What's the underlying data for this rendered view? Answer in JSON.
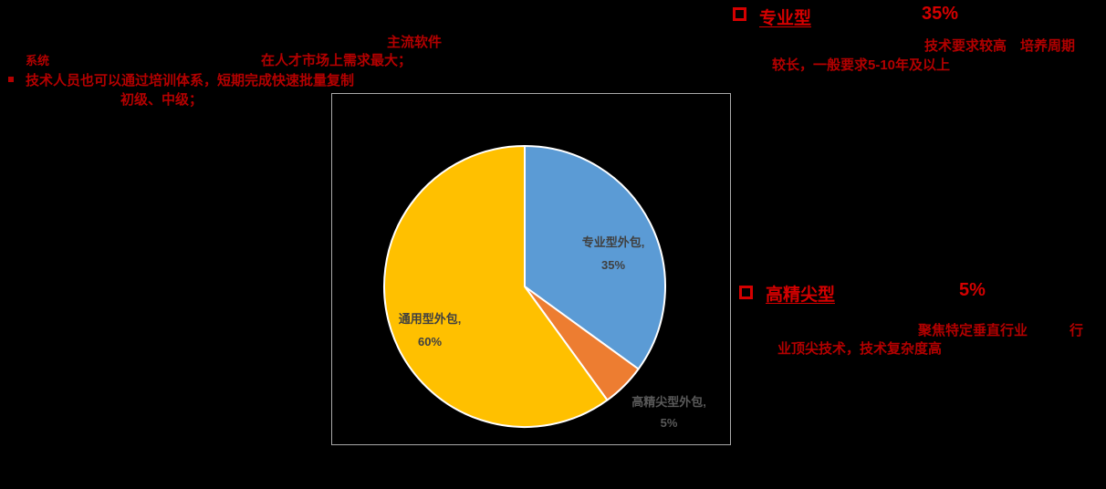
{
  "slide": {
    "background": "#000000"
  },
  "colors": {
    "slide_bg": "#000000",
    "red_body": "#b30000",
    "red_accent": "#d40000",
    "chart_border": "#a9a9a9",
    "pie_stroke": "#ffffff",
    "label_inside": "#404040",
    "label_outside": "#595959"
  },
  "annotations": {
    "left": {
      "bullet_icon": "small-red-square",
      "system": "系统",
      "market_demand": "在人才市场上需求最大；",
      "mainstream_software": "主流软件",
      "training": "技术人员也可以通过培训体系，短期完成快速批量复制",
      "levels": "初级、中级；"
    },
    "professional": {
      "bullet_icon": "hollow-red-square",
      "title": "专业型",
      "percent": "35%",
      "desc_line1": "技术要求较高　培养周期",
      "desc_line2": "较长，一般要求5-10年及以上"
    },
    "high_end": {
      "bullet_icon": "hollow-red-square",
      "title": "高精尖型",
      "percent": "5%",
      "desc_line1a": "聚焦特定垂直行业",
      "desc_line1b": "行",
      "desc_line2": "业顶尖技术，技术复杂度高"
    }
  },
  "chart_data": {
    "type": "pie",
    "title": "",
    "legend": "none",
    "start_angle_deg": 0,
    "direction": "clockwise",
    "categories": [
      "专业型外包",
      "高精尖型外包",
      "通用型外包"
    ],
    "values": [
      35,
      5,
      60
    ],
    "unit": "%",
    "slices": [
      {
        "id": "professional",
        "label": "专业型外包",
        "value": 35,
        "color": "#5B9BD5",
        "data_label_line1": "专业型外包,",
        "data_label_line2": "35%",
        "label_placement": "inside"
      },
      {
        "id": "highend",
        "label": "高精尖型外包",
        "value": 5,
        "color": "#ED7D31",
        "data_label_line1": "高精尖型外包,",
        "data_label_line2": "5%",
        "label_placement": "outside"
      },
      {
        "id": "general",
        "label": "通用型外包",
        "value": 60,
        "color": "#FFC000",
        "data_label_line1": "通用型外包,",
        "data_label_line2": "60%",
        "label_placement": "inside"
      }
    ]
  }
}
